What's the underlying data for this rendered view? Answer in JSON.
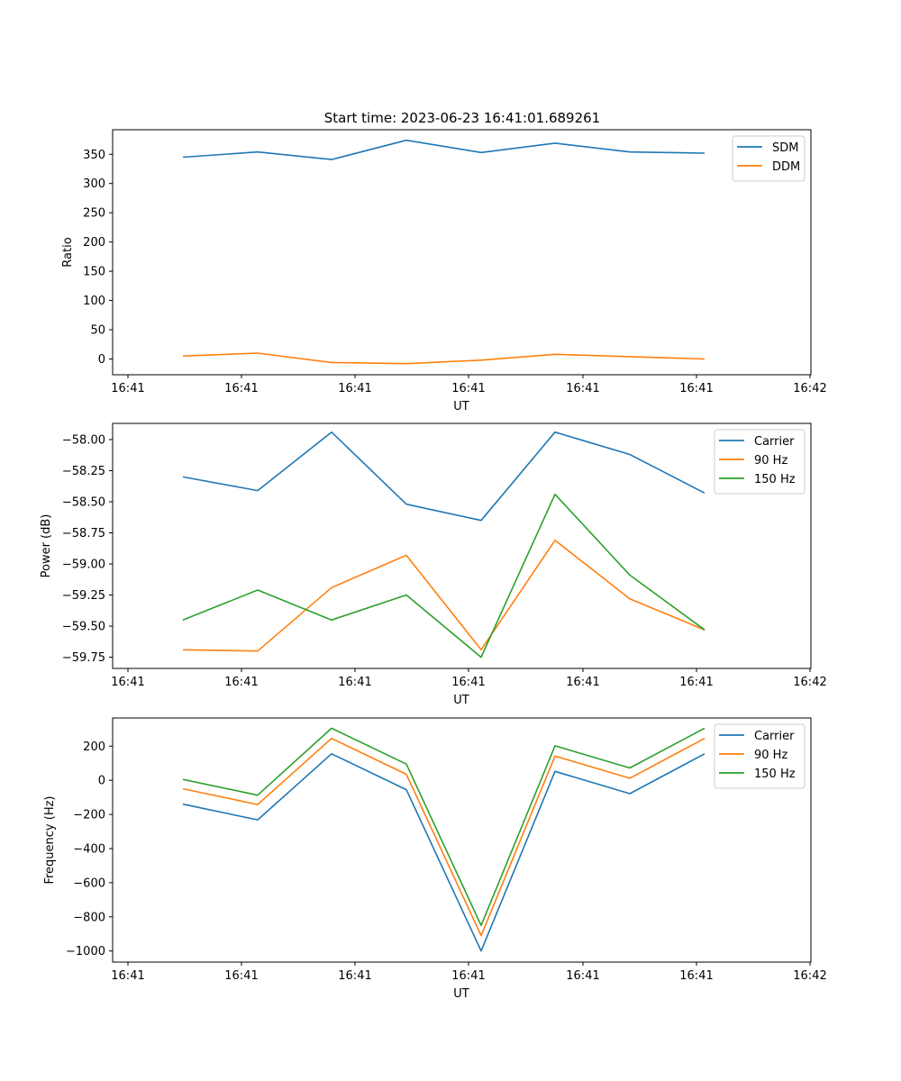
{
  "figure": {
    "title": "Start time: 2023-06-23 16:41:01.689261"
  },
  "chart_data": [
    {
      "type": "line",
      "xlabel": "UT",
      "ylabel": "Ratio",
      "x_ticks": [
        "16:41",
        "16:41",
        "16:41",
        "16:41",
        "16:41",
        "16:41",
        "16:42"
      ],
      "y_ticks": [
        0,
        50,
        100,
        150,
        200,
        250,
        300,
        350
      ],
      "ylim": [
        -27,
        392
      ],
      "legend": "top-right",
      "grid": false,
      "series": [
        {
          "name": "SDM",
          "color": "#1f77b4",
          "values": [
            345,
            354,
            341,
            374,
            353,
            369,
            354,
            352
          ]
        },
        {
          "name": "DDM",
          "color": "#ff7f0e",
          "values": [
            5,
            10,
            -6,
            -8,
            -2,
            8,
            4,
            0
          ]
        }
      ]
    },
    {
      "type": "line",
      "xlabel": "UT",
      "ylabel": "Power (dB)",
      "x_ticks": [
        "16:41",
        "16:41",
        "16:41",
        "16:41",
        "16:41",
        "16:41",
        "16:42"
      ],
      "y_ticks": [
        "−58.00",
        "−58.25",
        "−58.50",
        "−58.75",
        "−59.00",
        "−59.25",
        "−59.50",
        "−59.75"
      ],
      "y_tick_values": [
        -58.0,
        -58.25,
        -58.5,
        -58.75,
        -59.0,
        -59.25,
        -59.5,
        -59.75
      ],
      "ylim": [
        -59.84,
        -57.87
      ],
      "legend": "top-right",
      "grid": false,
      "series": [
        {
          "name": "Carrier",
          "color": "#1f77b4",
          "values": [
            -58.3,
            -58.41,
            -57.94,
            -58.52,
            -58.65,
            -57.94,
            -58.12,
            -58.43
          ]
        },
        {
          "name": "90 Hz",
          "color": "#ff7f0e",
          "values": [
            -59.69,
            -59.7,
            -59.19,
            -58.93,
            -59.69,
            -58.81,
            -59.28,
            -59.53
          ]
        },
        {
          "name": "150 Hz",
          "color": "#2ca02c",
          "values": [
            -59.45,
            -59.21,
            -59.45,
            -59.25,
            -59.75,
            -58.44,
            -59.09,
            -59.53
          ]
        }
      ]
    },
    {
      "type": "line",
      "xlabel": "UT",
      "ylabel": "Frequency (Hz)",
      "x_ticks": [
        "16:41",
        "16:41",
        "16:41",
        "16:41",
        "16:41",
        "16:41",
        "16:42"
      ],
      "y_ticks": [
        "200",
        "0",
        "−200",
        "−400",
        "−600",
        "−800",
        "−1000"
      ],
      "y_tick_values": [
        200,
        0,
        -200,
        -400,
        -600,
        -800,
        -1000
      ],
      "ylim": [
        -1065,
        365
      ],
      "legend": "top-right",
      "grid": false,
      "series": [
        {
          "name": "Carrier",
          "color": "#1f77b4",
          "values": [
            -140,
            -232,
            155,
            -55,
            -1000,
            52,
            -78,
            155
          ]
        },
        {
          "name": "90 Hz",
          "color": "#ff7f0e",
          "values": [
            -50,
            -142,
            245,
            35,
            -910,
            142,
            12,
            245
          ]
        },
        {
          "name": "150 Hz",
          "color": "#2ca02c",
          "values": [
            5,
            -87,
            305,
            95,
            -850,
            202,
            72,
            305
          ]
        }
      ]
    }
  ]
}
